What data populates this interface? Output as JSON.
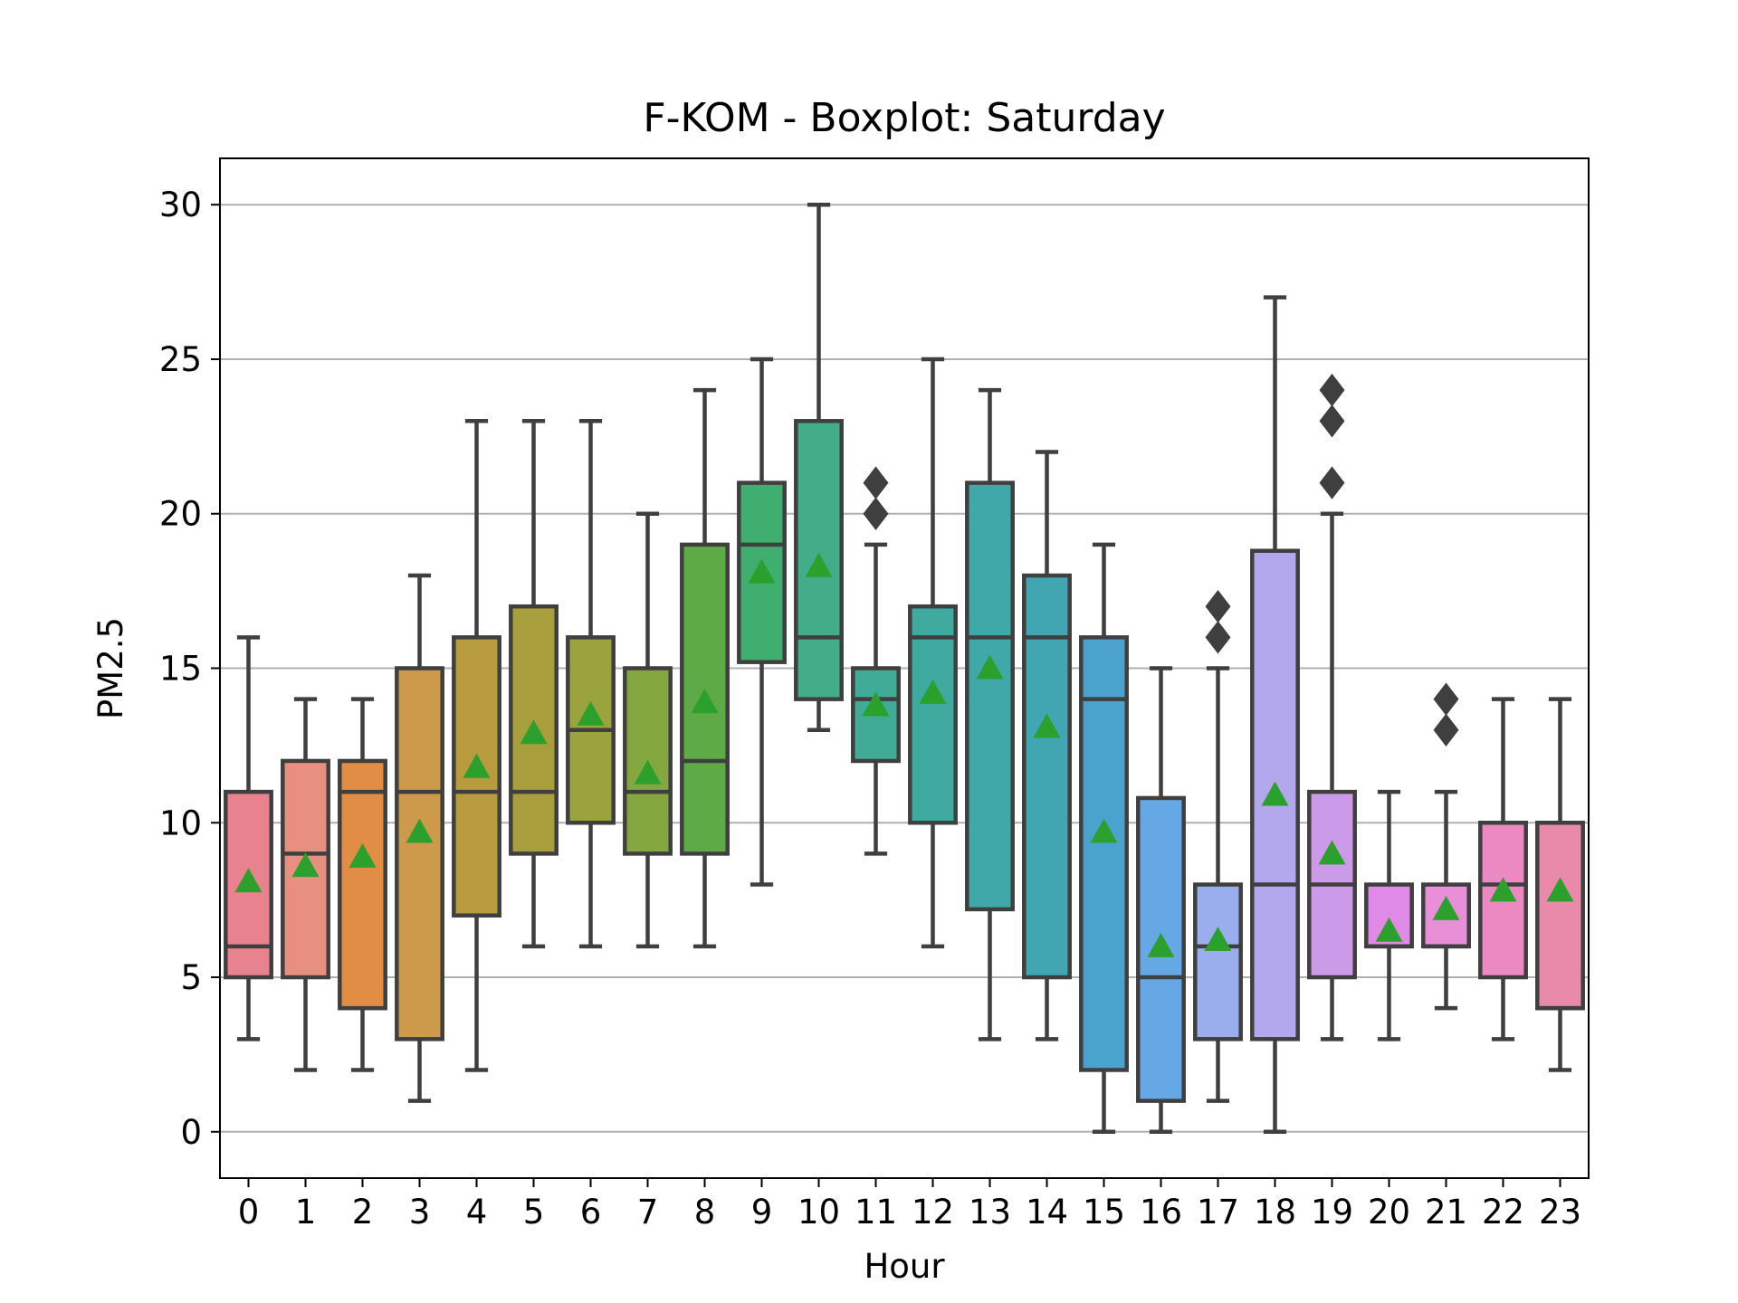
{
  "chart_data": {
    "type": "box",
    "title": "F-KOM - Boxplot: Saturday",
    "xlabel": "Hour",
    "ylabel": "PM2.5",
    "ylim": [
      -1.5,
      31.5
    ],
    "yticks": [
      0,
      5,
      10,
      15,
      20,
      25,
      30
    ],
    "grid": {
      "y": true,
      "x": false
    },
    "categories": [
      "0",
      "1",
      "2",
      "3",
      "4",
      "5",
      "6",
      "7",
      "8",
      "9",
      "10",
      "11",
      "12",
      "13",
      "14",
      "15",
      "16",
      "17",
      "18",
      "19",
      "20",
      "21",
      "22",
      "23"
    ],
    "boxes": [
      {
        "label": "0",
        "whisker_low": 3,
        "q1": 5,
        "median": 6,
        "q3": 11,
        "whisker_high": 16,
        "mean": 8.1,
        "outliers": [],
        "color": "#e8828e"
      },
      {
        "label": "1",
        "whisker_low": 2,
        "q1": 5,
        "median": 9,
        "q3": 12,
        "whisker_high": 14,
        "mean": 8.6,
        "outliers": [],
        "color": "#e8907f"
      },
      {
        "label": "2",
        "whisker_low": 2,
        "q1": 4,
        "median": 11,
        "q3": 12,
        "whisker_high": 14,
        "mean": 8.9,
        "outliers": [],
        "color": "#e18d45"
      },
      {
        "label": "3",
        "whisker_low": 1,
        "q1": 3,
        "median": 11,
        "q3": 15,
        "whisker_high": 18,
        "mean": 9.7,
        "outliers": [],
        "color": "#cc9a4a"
      },
      {
        "label": "4",
        "whisker_low": 2,
        "q1": 7,
        "median": 11,
        "q3": 16,
        "whisker_high": 23,
        "mean": 11.8,
        "outliers": [],
        "color": "#b89b3e"
      },
      {
        "label": "5",
        "whisker_low": 6,
        "q1": 9,
        "median": 11,
        "q3": 17,
        "whisker_high": 23,
        "mean": 12.9,
        "outliers": [],
        "color": "#a89f3c"
      },
      {
        "label": "6",
        "whisker_low": 6,
        "q1": 10,
        "median": 13,
        "q3": 16,
        "whisker_high": 23,
        "mean": 13.5,
        "outliers": [],
        "color": "#9aa33e"
      },
      {
        "label": "7",
        "whisker_low": 6,
        "q1": 9,
        "median": 11,
        "q3": 15,
        "whisker_high": 20,
        "mean": 11.6,
        "outliers": [],
        "color": "#84a83f"
      },
      {
        "label": "8",
        "whisker_low": 6,
        "q1": 9,
        "median": 12,
        "q3": 19,
        "whisker_high": 24,
        "mean": 13.9,
        "outliers": [],
        "color": "#5daa47"
      },
      {
        "label": "9",
        "whisker_low": 8,
        "q1": 15.2,
        "median": 19,
        "q3": 21,
        "whisker_high": 25,
        "mean": 18.1,
        "outliers": [],
        "color": "#3fae6e"
      },
      {
        "label": "10",
        "whisker_low": 13,
        "q1": 14,
        "median": 16,
        "q3": 23,
        "whisker_high": 30,
        "mean": 18.3,
        "outliers": [],
        "color": "#43ad8a"
      },
      {
        "label": "11",
        "whisker_low": 9,
        "q1": 12,
        "median": 14,
        "q3": 15,
        "whisker_high": 19,
        "mean": 13.8,
        "outliers": [
          20,
          21
        ],
        "color": "#40ab97"
      },
      {
        "label": "12",
        "whisker_low": 6,
        "q1": 10,
        "median": 16,
        "q3": 17,
        "whisker_high": 25,
        "mean": 14.2,
        "outliers": [],
        "color": "#3eaaa0"
      },
      {
        "label": "13",
        "whisker_low": 3,
        "q1": 7.2,
        "median": 16,
        "q3": 21,
        "whisker_high": 24,
        "mean": 15,
        "outliers": [],
        "color": "#3fa8a8"
      },
      {
        "label": "14",
        "whisker_low": 3,
        "q1": 5,
        "median": 16,
        "q3": 18,
        "whisker_high": 22,
        "mean": 13.1,
        "outliers": [],
        "color": "#41a5b2"
      },
      {
        "label": "15",
        "whisker_low": 0,
        "q1": 2,
        "median": 14,
        "q3": 16,
        "whisker_high": 19,
        "mean": 9.7,
        "outliers": [],
        "color": "#4aa3cc"
      },
      {
        "label": "16",
        "whisker_low": 0,
        "q1": 1,
        "median": 5,
        "q3": 10.8,
        "whisker_high": 15,
        "mean": 6,
        "outliers": [],
        "color": "#66a8e6"
      },
      {
        "label": "17",
        "whisker_low": 1,
        "q1": 3,
        "median": 6,
        "q3": 8,
        "whisker_high": 15,
        "mean": 6.2,
        "outliers": [
          16,
          17
        ],
        "color": "#9aaeee"
      },
      {
        "label": "18",
        "whisker_low": 0,
        "q1": 3,
        "median": 8,
        "q3": 18.8,
        "whisker_high": 27,
        "mean": 10.9,
        "outliers": [],
        "color": "#b3a8ee"
      },
      {
        "label": "19",
        "whisker_low": 3,
        "q1": 5,
        "median": 8,
        "q3": 11,
        "whisker_high": 20,
        "mean": 9,
        "outliers": [
          21,
          23,
          24
        ],
        "color": "#cb9ae8"
      },
      {
        "label": "20",
        "whisker_low": 3,
        "q1": 6,
        "median": 6,
        "q3": 8,
        "whisker_high": 11,
        "mean": 6.5,
        "outliers": [],
        "color": "#e08ae8"
      },
      {
        "label": "21",
        "whisker_low": 4,
        "q1": 6,
        "median": 6,
        "q3": 8,
        "whisker_high": 11,
        "mean": 7.2,
        "outliers": [
          13,
          14
        ],
        "color": "#e98fd8"
      },
      {
        "label": "22",
        "whisker_low": 3,
        "q1": 5,
        "median": 8,
        "q3": 10,
        "whisker_high": 14,
        "mean": 7.8,
        "outliers": [],
        "color": "#ec88c2"
      },
      {
        "label": "23",
        "whisker_low": 2,
        "q1": 4,
        "median": 4,
        "q3": 10,
        "whisker_high": 14,
        "mean": 7.8,
        "outliers": [],
        "color": "#ea8aab"
      }
    ],
    "colors": {
      "box_edge": "#3f3f3f",
      "mean_marker": "#2ca02c",
      "outlier": "#3f3f3f",
      "grid": "#b0b0b0",
      "frame": "#000000"
    }
  }
}
